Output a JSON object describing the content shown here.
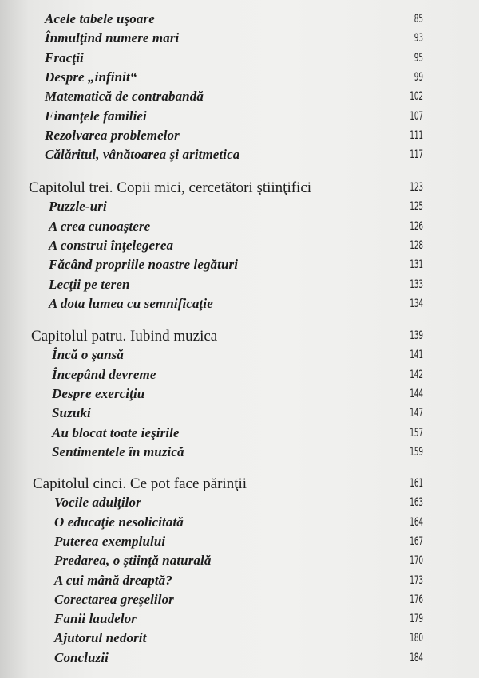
{
  "groups": [
    {
      "title": null,
      "entries": [
        {
          "title": "Acele tabele uşoare",
          "page": "85"
        },
        {
          "title": "Înmulţind numere mari",
          "page": "93"
        },
        {
          "title": "Fracţii",
          "page": "95"
        },
        {
          "title": "Despre „infinit“",
          "page": "99"
        },
        {
          "title": "Matematică de contrabandă",
          "page": "102"
        },
        {
          "title": "Finanţele familiei",
          "page": "107"
        },
        {
          "title": "Rezolvarea problemelor",
          "page": "111"
        },
        {
          "title": "Călăritul, vânătoarea şi aritmetica",
          "page": "117"
        }
      ]
    },
    {
      "title": "Capitolul trei. Copii mici, cercetători ştiinţifici",
      "page": "123",
      "entries": [
        {
          "title": "Puzzle-uri",
          "page": "125"
        },
        {
          "title": "A crea cunoaştere",
          "page": "126"
        },
        {
          "title": "A construi înţelegerea",
          "page": "128"
        },
        {
          "title": "Făcând propriile noastre legături",
          "page": "131"
        },
        {
          "title": "Lecţii pe teren",
          "page": "133"
        },
        {
          "title": "A dota lumea cu semnificaţie",
          "page": "134"
        }
      ]
    },
    {
      "title": "Capitolul patru. Iubind muzica",
      "page": "139",
      "entries": [
        {
          "title": "Încă o şansă",
          "page": "141"
        },
        {
          "title": "Începând devreme",
          "page": "142"
        },
        {
          "title": "Despre exerciţiu",
          "page": "144"
        },
        {
          "title": "Suzuki",
          "page": "147"
        },
        {
          "title": "Au blocat toate ieşirile",
          "page": "157"
        },
        {
          "title": "Sentimentele în muzică",
          "page": "159"
        }
      ]
    },
    {
      "title": "Capitolul cinci. Ce pot face părinţii",
      "page": "161",
      "entries": [
        {
          "title": "Vocile adulţilor",
          "page": "163"
        },
        {
          "title": "O educaţie nesolicitată",
          "page": "164"
        },
        {
          "title": "Puterea exemplului",
          "page": "167"
        },
        {
          "title": "Predarea, o ştiinţă naturală",
          "page": "170"
        },
        {
          "title": "A cui mână dreaptă?",
          "page": "173"
        },
        {
          "title": "Corectarea greşelilor",
          "page": "176"
        },
        {
          "title": "Fanii laudelor",
          "page": "179"
        },
        {
          "title": "Ajutorul nedorit",
          "page": "180"
        },
        {
          "title": "Concluzii",
          "page": "184"
        }
      ]
    }
  ]
}
